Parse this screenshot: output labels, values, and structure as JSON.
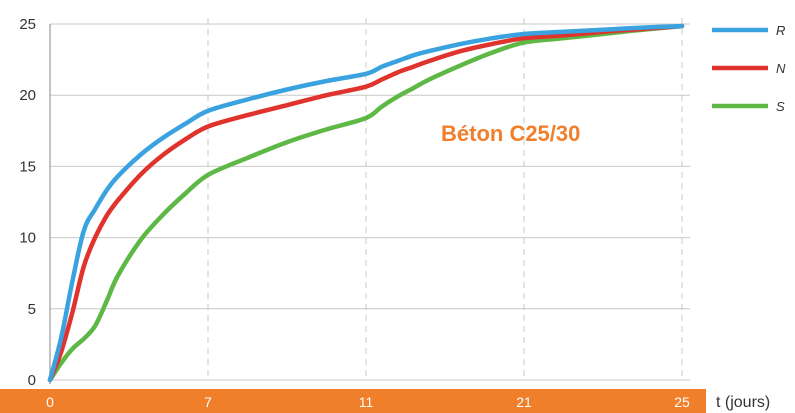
{
  "chart_data": {
    "type": "line",
    "title": "",
    "annotation": "Béton C25/30",
    "xlabel": "t (jours)",
    "ylabel": "",
    "x_ticks": [
      "0",
      "7",
      "11",
      "21",
      "25"
    ],
    "y_ticks": [
      0,
      5,
      10,
      15,
      20,
      25
    ],
    "ylim": [
      0,
      25
    ],
    "grid": true,
    "legend_position": "right",
    "colors": {
      "axis_band": "#f07f2c",
      "annotation": "#f07f2c",
      "grid": "#c8c8c8"
    },
    "series": [
      {
        "name": "R",
        "color": "#3aa3df",
        "x": [
          0,
          0.5,
          1,
          1.5,
          2,
          2.5,
          3,
          4,
          5,
          6,
          7,
          8,
          9,
          10,
          11,
          12,
          13,
          14,
          15,
          17,
          19,
          21,
          22,
          23,
          24,
          25
        ],
        "y": [
          0,
          3,
          7,
          10.5,
          12,
          13.3,
          14.3,
          15.8,
          17,
          18,
          18.9,
          19.7,
          20.4,
          21.0,
          21.5,
          22.0,
          22.4,
          22.8,
          23.1,
          23.6,
          24.0,
          24.3,
          24.45,
          24.6,
          24.75,
          24.85
        ]
      },
      {
        "name": "N",
        "color": "#e0332d",
        "x": [
          0,
          0.5,
          1,
          1.5,
          2,
          2.5,
          3,
          4,
          5,
          6,
          7,
          8,
          9,
          10,
          11,
          12,
          13,
          14,
          15,
          17,
          19,
          21,
          22,
          23,
          24,
          25
        ],
        "y": [
          0,
          2,
          4.8,
          8,
          10,
          11.5,
          12.6,
          14.4,
          15.8,
          16.9,
          17.8,
          18.6,
          19.3,
          20.0,
          20.6,
          21.1,
          21.6,
          22.0,
          22.4,
          23.1,
          23.6,
          24.0,
          24.2,
          24.45,
          24.65,
          24.85
        ]
      },
      {
        "name": "S",
        "color": "#5db846",
        "x": [
          0,
          0.5,
          1,
          1.5,
          2,
          2.5,
          3,
          4,
          5,
          6,
          7,
          8,
          9,
          10,
          11,
          12,
          13,
          14,
          15,
          17,
          19,
          21,
          22,
          23,
          24,
          25
        ],
        "y": [
          0,
          1.2,
          2.2,
          2.9,
          3.8,
          5.5,
          7.3,
          9.8,
          11.6,
          13.1,
          14.4,
          15.6,
          16.7,
          17.6,
          18.4,
          19.2,
          19.9,
          20.5,
          21.1,
          22.1,
          23.0,
          23.7,
          24.0,
          24.3,
          24.6,
          24.85
        ]
      }
    ]
  }
}
